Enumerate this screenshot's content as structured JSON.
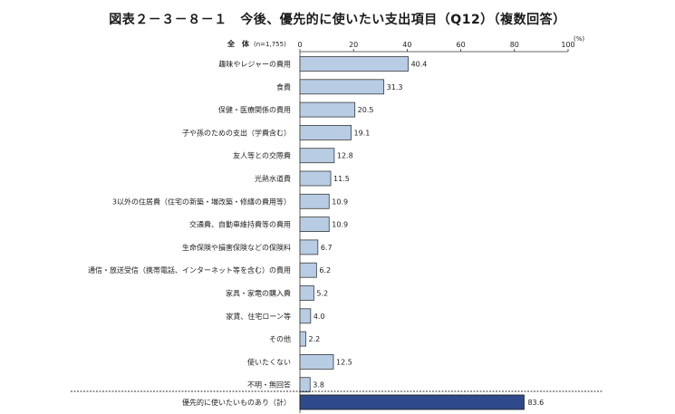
{
  "title": "図表２－３－８－１　今後、優先的に使いたい支出項目（Q12）（複数回答）",
  "chart_data": {
    "type": "bar",
    "orientation": "horizontal",
    "header": "全　体",
    "sample": "(n=1,755)",
    "unit": "(%)",
    "xlim": [
      0,
      100
    ],
    "xticks": [
      0,
      20,
      40,
      60,
      80,
      100
    ],
    "categories": [
      "趣味やレジャーの費用",
      "食費",
      "保健・医療関係の費用",
      "子や孫のための支出（学費含む）",
      "友人等との交際費",
      "光熱水道費",
      "3以外の住居費（住宅の新築・増改築・修繕の費用等）",
      "交通費、自動車維持費等の費用",
      "生命保険や損害保険などの保険料",
      "通信・放送受信（携帯電話、インターネット等を含む）の費用",
      "家具・家電の購入費",
      "家賃、住宅ローン等",
      "その他",
      "使いたくない",
      "不明・無回答"
    ],
    "values": [
      40.4,
      31.3,
      20.5,
      19.1,
      12.8,
      11.5,
      10.9,
      10.9,
      6.7,
      6.2,
      5.2,
      4.0,
      2.2,
      12.5,
      3.8
    ],
    "value_labels": [
      "40.4",
      "31.3",
      "20.5",
      "19.1",
      "12.8",
      "11.5",
      "10.9",
      "10.9",
      "6.7",
      "6.2",
      "5.2",
      "4.0",
      "2.2",
      "12.5",
      "3.8"
    ],
    "total": {
      "label": "優先的に使いたいものあり（計）",
      "value": 83.6,
      "value_label": "83.6"
    },
    "colors": {
      "bar": "#b8cce4",
      "bar_stroke": "#3a3a3a",
      "total_bar": "#2e4a8a"
    },
    "grid": false
  }
}
